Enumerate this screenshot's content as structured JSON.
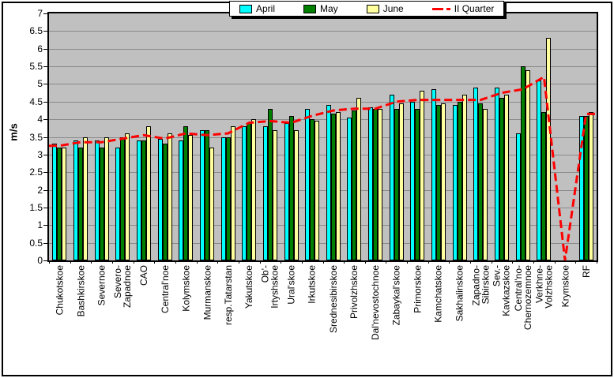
{
  "legend": {
    "items": [
      {
        "label": "April",
        "color": "#00FFFF",
        "type": "box"
      },
      {
        "label": "May",
        "color": "#008000",
        "type": "box"
      },
      {
        "label": "June",
        "color": "#FFFF9E",
        "type": "box"
      },
      {
        "label": "II Quarter",
        "color": "#FF0000",
        "type": "dash"
      }
    ]
  },
  "y_axis": {
    "label": "m/s",
    "tick_labels": [
      "0",
      "0.5",
      "1",
      "1.5",
      "2",
      "2.5",
      "3",
      "3.5",
      "4",
      "4.5",
      "5",
      "5.5",
      "6",
      "6.5",
      "7"
    ]
  },
  "colors": {
    "plot_background": "#C0C0C0",
    "gridline": "#8A8A8A",
    "line": "#FF0000"
  },
  "chart_data": {
    "type": "bar",
    "title": "",
    "xlabel": "",
    "ylabel": "m/s",
    "ylim": [
      0,
      7
    ],
    "ytick_step": 0.5,
    "grid": true,
    "legend_position": "top",
    "categories": [
      "Chukotskoe",
      "Bashkirskoe",
      "Severnoe",
      "Severo-\nZapadnoe",
      "CAO",
      "Central'noe",
      "Kolymskoe",
      "Murmanskoe",
      "resp.Tatarstan",
      "Yakutskoe",
      "Ob'-\nIrtyshskoe",
      "Ural'skoe",
      "Irkutskoe",
      "Srednesibirskoe",
      "Privolzhskoe",
      "Dal'nevostochnoe",
      "Zabaykal'skoe",
      "Primorskoe",
      "Kamchatskoe",
      "Sakhalinskoe",
      "Zapadno-\nSibirskoe",
      "Sev.-\nKavkazskoe",
      "Central'no-\nChernozemnoe",
      "Verkhne-\nVolzhskoe",
      "Krymskoe",
      "RF"
    ],
    "series": [
      {
        "name": "April",
        "color": "#00FFFF",
        "values": [
          3.3,
          3.4,
          3.4,
          3.2,
          3.4,
          3.45,
          3.4,
          3.7,
          3.5,
          3.8,
          3.8,
          3.9,
          4.3,
          4.4,
          4.05,
          4.35,
          4.7,
          4.5,
          4.85,
          4.4,
          4.9,
          4.9,
          3.6,
          5.1,
          null,
          4.1
        ]
      },
      {
        "name": "May",
        "color": "#008000",
        "values": [
          3.2,
          3.2,
          3.2,
          3.5,
          3.4,
          3.3,
          3.8,
          3.7,
          3.5,
          3.9,
          4.3,
          4.1,
          4.0,
          4.15,
          4.25,
          4.3,
          4.3,
          4.3,
          4.4,
          4.5,
          4.45,
          4.6,
          5.5,
          4.2,
          null,
          4.1
        ]
      },
      {
        "name": "June",
        "color": "#FFFF9E",
        "values": [
          3.2,
          3.5,
          3.5,
          3.6,
          3.8,
          3.6,
          3.55,
          3.2,
          3.8,
          4.0,
          3.7,
          3.7,
          3.95,
          4.2,
          4.6,
          4.3,
          4.45,
          4.8,
          4.45,
          4.7,
          4.3,
          4.7,
          5.4,
          6.3,
          null,
          4.2
        ]
      }
    ],
    "line_series": {
      "name": "II Quarter",
      "color": "#FF0000",
      "style": "dashed",
      "values": [
        3.25,
        3.35,
        3.35,
        3.45,
        3.55,
        3.45,
        3.6,
        3.55,
        3.6,
        3.9,
        3.95,
        3.9,
        4.1,
        4.25,
        4.3,
        4.3,
        4.5,
        4.55,
        4.55,
        4.55,
        4.55,
        4.75,
        4.85,
        5.2,
        0,
        4.15
      ]
    }
  }
}
